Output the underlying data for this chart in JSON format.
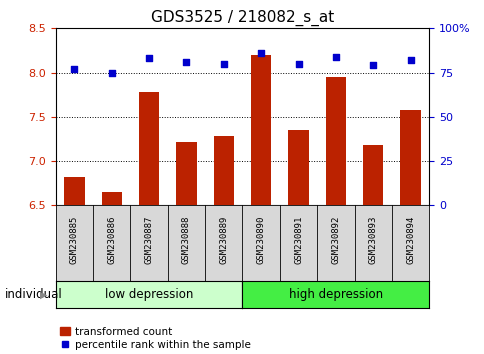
{
  "title": "GDS3525 / 218082_s_at",
  "samples": [
    "GSM230885",
    "GSM230886",
    "GSM230887",
    "GSM230888",
    "GSM230889",
    "GSM230890",
    "GSM230891",
    "GSM230892",
    "GSM230893",
    "GSM230894"
  ],
  "bar_values": [
    6.82,
    6.65,
    7.78,
    7.22,
    7.28,
    8.2,
    7.35,
    7.95,
    7.18,
    7.58
  ],
  "dot_values": [
    77,
    75,
    83,
    81,
    80,
    86,
    80,
    84,
    79,
    82
  ],
  "bar_color": "#bb2200",
  "dot_color": "#0000cc",
  "ylim_left": [
    6.5,
    8.5
  ],
  "ylim_right": [
    0,
    100
  ],
  "yticks_left": [
    6.5,
    7.0,
    7.5,
    8.0,
    8.5
  ],
  "yticks_right": [
    0,
    25,
    50,
    75,
    100
  ],
  "group_low": [
    "GSM230885",
    "GSM230886",
    "GSM230887",
    "GSM230888",
    "GSM230889"
  ],
  "group_high": [
    "GSM230890",
    "GSM230891",
    "GSM230892",
    "GSM230893",
    "GSM230894"
  ],
  "group_low_label": "low depression",
  "group_high_label": "high depression",
  "group_low_color": "#ccffcc",
  "group_high_color": "#44ee44",
  "legend_bar_label": "transformed count",
  "legend_dot_label": "percentile rank within the sample",
  "individual_label": "individual",
  "xlabel_bg_color": "#d8d8d8",
  "title_fontsize": 11,
  "tick_fontsize": 8,
  "label_fontsize": 8.5
}
